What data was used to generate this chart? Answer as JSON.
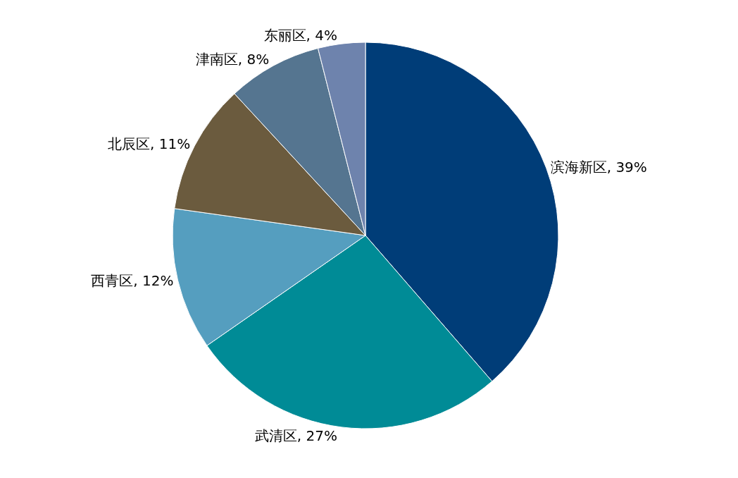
{
  "chart_data": {
    "type": "pie",
    "categories": [
      "滨海新区",
      "武清区",
      "西青区",
      "北辰区",
      "津南区",
      "东丽区"
    ],
    "values": [
      39,
      27,
      12,
      11,
      8,
      4
    ],
    "value_labels": [
      "39%",
      "27%",
      "12%",
      "11%",
      "8%",
      "4%"
    ],
    "colors": [
      "#003d78",
      "#008b96",
      "#559ebf",
      "#6b5b3e",
      "#557590",
      "#6e83ad"
    ],
    "legend": false
  }
}
